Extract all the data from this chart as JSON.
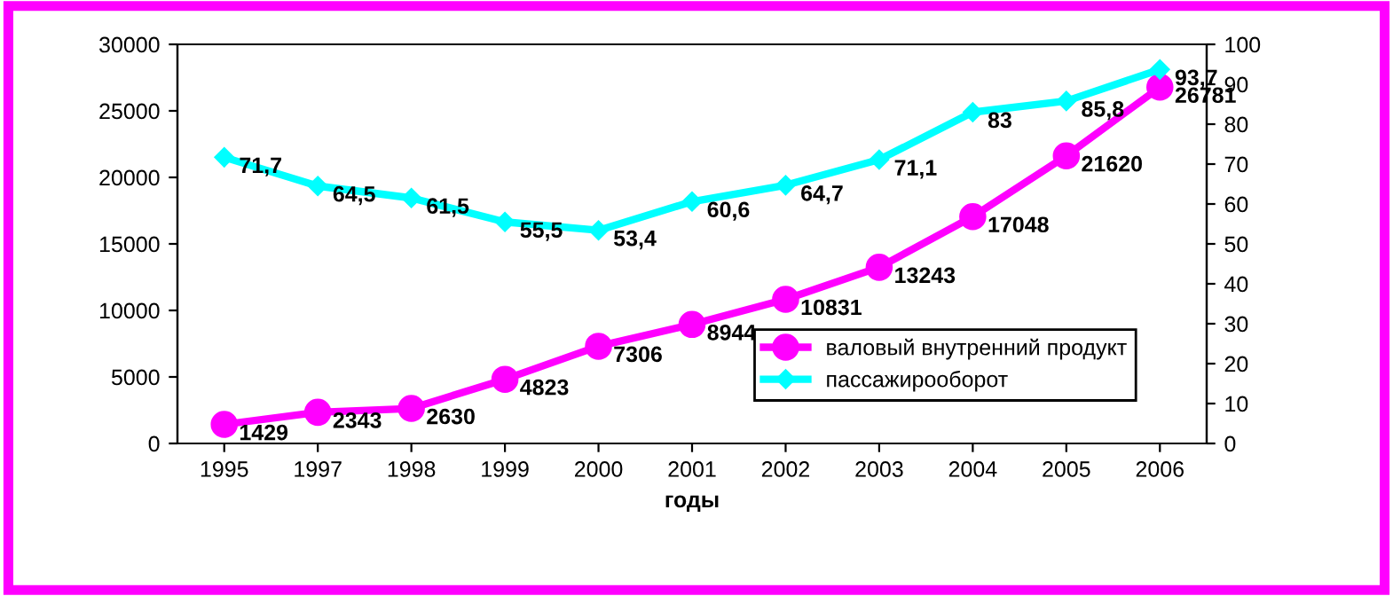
{
  "chart_data": {
    "type": "line",
    "xlabel": "годы",
    "categories": [
      "1995",
      "1997",
      "1998",
      "1999",
      "2000",
      "2001",
      "2002",
      "2003",
      "2004",
      "2005",
      "2006"
    ],
    "series": [
      {
        "name": "валовый внутренний продукт",
        "color": "#ff00ff",
        "marker": "circle",
        "values": [
          1429,
          2343,
          2630,
          4823,
          7306,
          8944,
          10831,
          13243,
          17048,
          21620,
          26781
        ],
        "value_labels": [
          "1429",
          "2343",
          "2630",
          "4823",
          "7306",
          "8944",
          "10831",
          "13243",
          "17048",
          "21620",
          "26781"
        ]
      },
      {
        "name": "пассажирооборот",
        "color": "#00ffff",
        "marker": "diamond",
        "axis": "y2",
        "values": [
          71.7,
          64.5,
          61.5,
          55.5,
          53.4,
          60.6,
          64.7,
          71.1,
          83,
          85.8,
          93.7
        ],
        "value_labels": [
          "71,7",
          "64,5",
          "61,5",
          "55,5",
          "53,4",
          "60,6",
          "64,7",
          "71,1",
          "83",
          "85,8",
          "93,7"
        ]
      }
    ],
    "ylim": [
      0,
      30000
    ],
    "yticks": [
      0,
      5000,
      10000,
      15000,
      20000,
      25000,
      30000
    ],
    "y2lim": [
      0,
      100
    ],
    "y2ticks": [
      0,
      10,
      20,
      30,
      40,
      50,
      60,
      70,
      80,
      90,
      100
    ],
    "legend": "bottom right",
    "grid": false
  }
}
